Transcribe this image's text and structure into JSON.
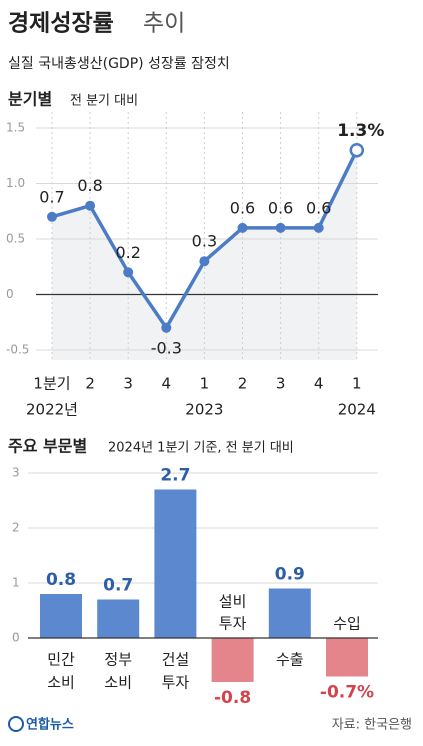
{
  "header": {
    "title": "경제성장률",
    "title_light": "추이",
    "subtitle": "실질 국내총생산(GDP) 성장률 잠정치"
  },
  "chart_data": [
    {
      "type": "line",
      "title": "분기별",
      "subtitle": "전 분기 대비",
      "categories": [
        "1분기",
        "2",
        "3",
        "4",
        "1",
        "2",
        "3",
        "4",
        "1"
      ],
      "year_labels": [
        "2022년",
        null,
        null,
        null,
        "2023",
        null,
        null,
        null,
        "2024"
      ],
      "values": [
        0.7,
        0.8,
        0.2,
        -0.3,
        0.3,
        0.6,
        0.6,
        0.6,
        1.3
      ],
      "value_labels": [
        "0.7",
        "0.8",
        "0.2",
        "-0.3",
        "0.3",
        "0.6",
        "0.6",
        "0.6",
        "1.3%"
      ],
      "color": "#4d7cc7",
      "ylim": [
        -0.5,
        1.5
      ],
      "yticks": [
        1.5,
        {
          "value": 1,
          "label": "1.0"
        },
        0.5,
        0,
        -0.5
      ],
      "grid": true
    },
    {
      "type": "bar",
      "title": "주요 부문별",
      "subtitle": "2024년 1분기 기준, 전 분기 대비",
      "categories": [
        [
          "민간",
          "소비"
        ],
        [
          "정부",
          "소비"
        ],
        [
          "건설",
          "투자"
        ],
        [
          "설비",
          "투자"
        ],
        [
          "수출"
        ],
        [
          "수입"
        ]
      ],
      "values": [
        0.8,
        0.7,
        2.7,
        -0.8,
        0.9,
        -0.7
      ],
      "value_labels": [
        "0.8",
        "0.7",
        "2.7",
        "-0.8",
        "0.9",
        "-0.7%"
      ],
      "color": "#5b88cf",
      "negative_color": "#e3858b",
      "ylim": [
        -1,
        3
      ],
      "yticks": [
        0,
        1,
        2,
        3
      ],
      "grid": true
    }
  ],
  "footer": {
    "logo": "연합뉴스",
    "source": "자료: 한국은행"
  }
}
